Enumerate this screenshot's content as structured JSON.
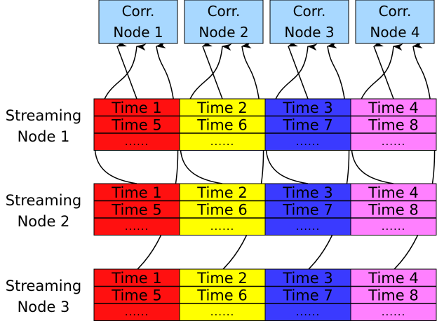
{
  "colors": {
    "corr_fill": "#a8d8ff",
    "time_groups": [
      "#ff1010",
      "#ffff00",
      "#3a3aff",
      "#ff80ff"
    ],
    "stroke": "#000000"
  },
  "correlation_nodes": [
    {
      "line1": "Corr.",
      "line2": "Node 1"
    },
    {
      "line1": "Corr.",
      "line2": "Node 2"
    },
    {
      "line1": "Corr.",
      "line2": "Node 3"
    },
    {
      "line1": "Corr.",
      "line2": "Node 4"
    }
  ],
  "streaming_nodes": [
    {
      "line1": "Streaming",
      "line2": "Node 1",
      "cells": [
        [
          "Time 1",
          "Time 5",
          "......"
        ],
        [
          "Time 2",
          "Time 6",
          "......"
        ],
        [
          "Time 3",
          "Time 7",
          "......"
        ],
        [
          "Time 4",
          "Time 8",
          "......"
        ]
      ]
    },
    {
      "line1": "Streaming",
      "line2": "Node 2",
      "cells": [
        [
          "Time 1",
          "Time 5",
          "......"
        ],
        [
          "Time 2",
          "Time 6",
          "......"
        ],
        [
          "Time 3",
          "Time 7",
          "......"
        ],
        [
          "Time 4",
          "Time 8",
          "......"
        ]
      ]
    },
    {
      "line1": "Streaming",
      "line2": "Node 3",
      "cells": [
        [
          "Time 1",
          "Time 5",
          "......"
        ],
        [
          "Time 2",
          "Time 6",
          "......"
        ],
        [
          "Time 3",
          "Time 7",
          "......"
        ],
        [
          "Time 4",
          "Time 8",
          "......"
        ]
      ]
    }
  ],
  "connections": [
    {
      "from_streaming": 1,
      "from_column": 1,
      "to_corr": 1
    },
    {
      "from_streaming": 2,
      "from_column": 1,
      "to_corr": 1
    },
    {
      "from_streaming": 3,
      "from_column": 1,
      "to_corr": 1
    },
    {
      "from_streaming": 1,
      "from_column": 2,
      "to_corr": 2
    },
    {
      "from_streaming": 2,
      "from_column": 2,
      "to_corr": 2
    },
    {
      "from_streaming": 3,
      "from_column": 2,
      "to_corr": 2
    },
    {
      "from_streaming": 1,
      "from_column": 3,
      "to_corr": 3
    },
    {
      "from_streaming": 2,
      "from_column": 3,
      "to_corr": 3
    },
    {
      "from_streaming": 3,
      "from_column": 3,
      "to_corr": 3
    },
    {
      "from_streaming": 1,
      "from_column": 4,
      "to_corr": 4
    },
    {
      "from_streaming": 2,
      "from_column": 4,
      "to_corr": 4
    },
    {
      "from_streaming": 3,
      "from_column": 4,
      "to_corr": 4
    }
  ]
}
